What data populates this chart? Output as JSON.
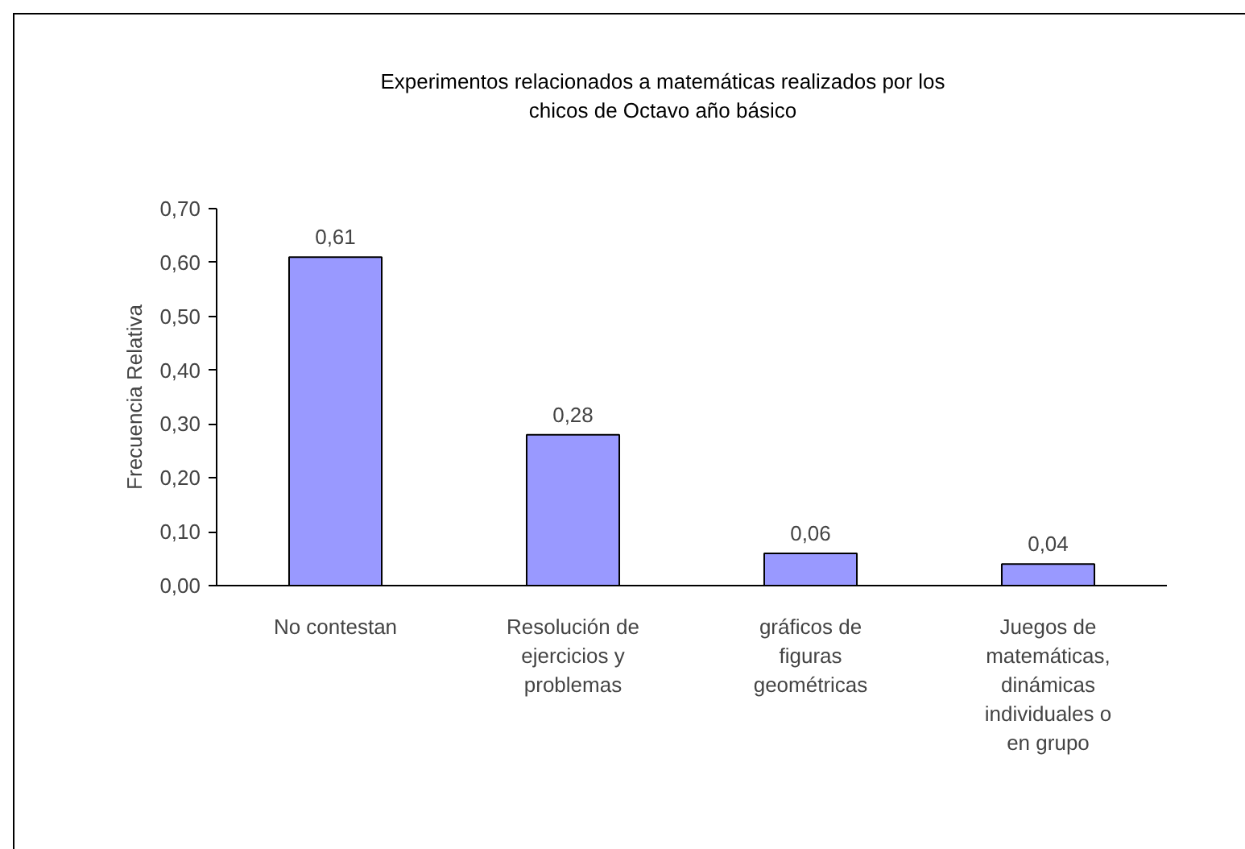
{
  "chart_data": {
    "type": "bar",
    "title": "Experimentos relacionados a matemáticas realizados por los chicos de Octavo año básico",
    "ylabel": "Frecuencia Relativa",
    "categories": [
      "No contestan",
      "Resolución de ejercicios y problemas",
      "gráficos de figuras geométricas",
      "Juegos de matemáticas, dinámicas individuales o en grupo"
    ],
    "values": [
      0.61,
      0.28,
      0.06,
      0.04
    ],
    "value_labels": [
      "0,61",
      "0,28",
      "0,06",
      "0,04"
    ],
    "color": "#9999ff",
    "ylim": [
      0,
      0.7
    ],
    "yticks": [
      {
        "value": 0,
        "label": "0,00"
      },
      {
        "value": 0.1,
        "label": "0,10"
      },
      {
        "value": 0.2,
        "label": "0,20"
      },
      {
        "value": 0.3,
        "label": "0,30"
      },
      {
        "value": 0.4,
        "label": "0,40"
      },
      {
        "value": 0.5,
        "label": "0,50"
      },
      {
        "value": 0.6,
        "label": "0,60"
      },
      {
        "value": 0.7,
        "label": "0,70"
      }
    ],
    "grid": false
  }
}
